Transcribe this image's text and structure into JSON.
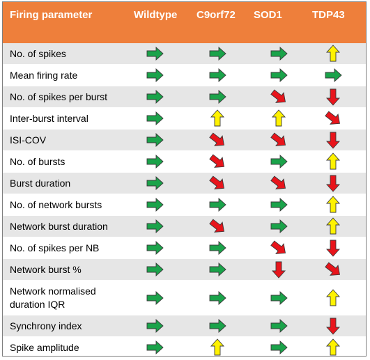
{
  "header": {
    "parameter": "Firing parameter",
    "columns": [
      "Wildtype",
      "C9orf72",
      "SOD1",
      "TDP43"
    ]
  },
  "colors": {
    "header_bg": "#ee7f3b",
    "right": "#1aa34a",
    "up": "#fff200",
    "down": "#e8141b",
    "down_right": "#e8141b"
  },
  "rows": [
    {
      "label": "No. of spikes",
      "arrows": [
        "right",
        "right",
        "right",
        "up"
      ]
    },
    {
      "label": "Mean firing rate",
      "arrows": [
        "right",
        "right",
        "right",
        "right"
      ]
    },
    {
      "label": "No. of spikes per burst",
      "arrows": [
        "right",
        "right",
        "down-right",
        "down"
      ]
    },
    {
      "label": "Inter-burst interval",
      "arrows": [
        "right",
        "up",
        "up",
        "down-right"
      ]
    },
    {
      "label": "ISI-COV",
      "arrows": [
        "right",
        "down-right",
        "down-right",
        "down"
      ]
    },
    {
      "label": "No. of bursts",
      "arrows": [
        "right",
        "down-right",
        "right",
        "up"
      ]
    },
    {
      "label": "Burst duration",
      "arrows": [
        "right",
        "down-right",
        "down-right",
        "down"
      ]
    },
    {
      "label": "No. of network bursts",
      "arrows": [
        "right",
        "right",
        "right",
        "up"
      ]
    },
    {
      "label": "Network burst duration",
      "arrows": [
        "right",
        "down-right",
        "right",
        "up"
      ]
    },
    {
      "label": "No. of spikes per NB",
      "arrows": [
        "right",
        "right",
        "down-right",
        "down"
      ]
    },
    {
      "label": "Network burst %",
      "arrows": [
        "right",
        "right",
        "down",
        "down-right"
      ]
    },
    {
      "label": "Network normalised duration IQR",
      "arrows": [
        "right",
        "right",
        "right",
        "up"
      ]
    },
    {
      "label": "Synchrony index",
      "arrows": [
        "right",
        "right",
        "right",
        "down"
      ]
    },
    {
      "label": "Spike amplitude",
      "arrows": [
        "right",
        "up",
        "right",
        "up"
      ]
    }
  ]
}
